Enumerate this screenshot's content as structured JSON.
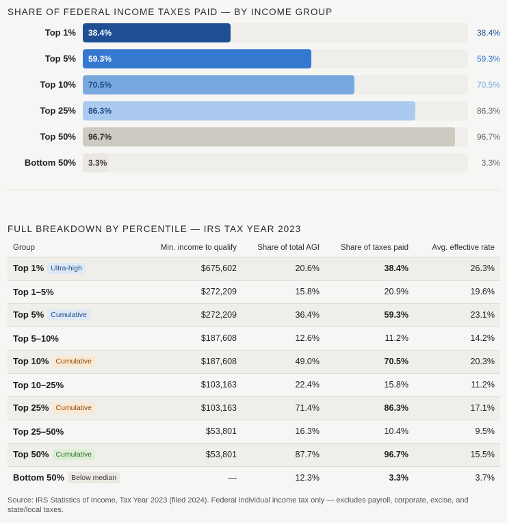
{
  "chart_data": {
    "type": "bar",
    "orientation": "horizontal",
    "title": "SHARE OF FEDERAL INCOME TAXES PAID — BY INCOME GROUP",
    "categories": [
      "Top 1%",
      "Top 5%",
      "Top 10%",
      "Top 25%",
      "Top 50%",
      "Bottom 50%"
    ],
    "values": [
      38.4,
      59.3,
      70.5,
      86.3,
      96.7,
      3.3
    ],
    "value_labels": [
      "38.4%",
      "59.3%",
      "70.5%",
      "86.3%",
      "96.7%",
      "3.3%"
    ],
    "xlim": [
      0,
      100
    ],
    "unit": "%",
    "xlabel": "",
    "ylabel": "",
    "grid": false,
    "legend": "none",
    "colors": [
      "#1e4f94",
      "#3478cf",
      "#77a8e0",
      "#aacbef",
      "#cdcbc1",
      "#ebe8e1"
    ],
    "inlabel_colors": [
      "#ffffff",
      "#ffffff",
      "#1f4a85",
      "#1f4a85",
      "#2b2b2b",
      "#444444"
    ],
    "value_colors": [
      "#1e4f94",
      "#3478cf",
      "#77a8e0",
      "#666666",
      "#666666",
      "#666666"
    ]
  },
  "table": {
    "title": "FULL BREAKDOWN BY PERCENTILE — IRS TAX YEAR 2023",
    "headers": [
      "Group",
      "Min. income to qualify",
      "Share of total AGI",
      "Share of taxes paid",
      "Avg. effective rate"
    ],
    "rows": [
      {
        "group": "Top 1%",
        "badge": "Ultra-high",
        "badge_style": "blue",
        "min_income": "$675,602",
        "agi": "20.6%",
        "taxes": "38.4%",
        "rate": "26.3%",
        "shaded": true,
        "bold_taxes": true
      },
      {
        "group": "Top 1–5%",
        "badge": "",
        "badge_style": "",
        "min_income": "$272,209",
        "agi": "15.8%",
        "taxes": "20.9%",
        "rate": "19.6%",
        "shaded": false,
        "bold_taxes": false
      },
      {
        "group": "Top 5%",
        "badge": "Cumulative",
        "badge_style": "blue",
        "min_income": "$272,209",
        "agi": "36.4%",
        "taxes": "59.3%",
        "rate": "23.1%",
        "shaded": true,
        "bold_taxes": true
      },
      {
        "group": "Top 5–10%",
        "badge": "",
        "badge_style": "",
        "min_income": "$187,608",
        "agi": "12.6%",
        "taxes": "11.2%",
        "rate": "14.2%",
        "shaded": false,
        "bold_taxes": false
      },
      {
        "group": "Top 10%",
        "badge": "Cumulative",
        "badge_style": "orange",
        "min_income": "$187,608",
        "agi": "49.0%",
        "taxes": "70.5%",
        "rate": "20.3%",
        "shaded": true,
        "bold_taxes": true
      },
      {
        "group": "Top 10–25%",
        "badge": "",
        "badge_style": "",
        "min_income": "$103,163",
        "agi": "22.4%",
        "taxes": "15.8%",
        "rate": "11.2%",
        "shaded": false,
        "bold_taxes": false
      },
      {
        "group": "Top 25%",
        "badge": "Cumulative",
        "badge_style": "orange",
        "min_income": "$103,163",
        "agi": "71.4%",
        "taxes": "86.3%",
        "rate": "17.1%",
        "shaded": true,
        "bold_taxes": true
      },
      {
        "group": "Top 25–50%",
        "badge": "",
        "badge_style": "",
        "min_income": "$53,801",
        "agi": "16.3%",
        "taxes": "10.4%",
        "rate": "9.5%",
        "shaded": false,
        "bold_taxes": false
      },
      {
        "group": "Top 50%",
        "badge": "Cumulative",
        "badge_style": "green",
        "min_income": "$53,801",
        "agi": "87.7%",
        "taxes": "96.7%",
        "rate": "15.5%",
        "shaded": true,
        "bold_taxes": true
      },
      {
        "group": "Bottom 50%",
        "badge": "Below median",
        "badge_style": "gray",
        "min_income": "—",
        "agi": "12.3%",
        "taxes": "3.3%",
        "rate": "3.7%",
        "shaded": false,
        "bold_taxes": true
      }
    ]
  },
  "source_note": "Source: IRS Statistics of Income, Tax Year 2023 (filed 2024). Federal individual income tax only — excludes payroll, corporate, excise, and state/local taxes."
}
